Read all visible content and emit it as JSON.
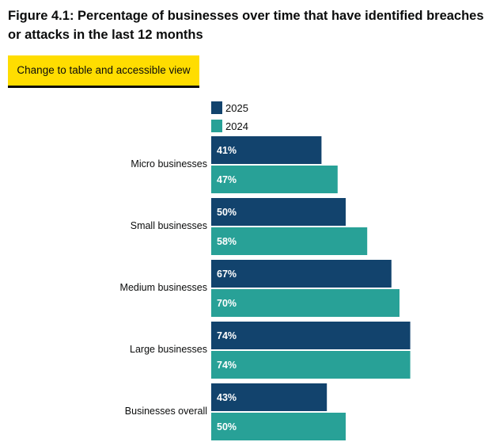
{
  "title": "Figure 4.1: Percentage of businesses over time that have identified breaches or attacks in the last 12 months",
  "toggle_button": "Change to table and accessible view",
  "colors": {
    "series_2025": "#12436d",
    "series_2024": "#28a197",
    "button": "#ffdd00"
  },
  "chart_data": {
    "type": "bar",
    "orientation": "horizontal",
    "categories": [
      "Micro businesses",
      "Small businesses",
      "Medium businesses",
      "Large businesses",
      "Businesses overall"
    ],
    "series": [
      {
        "name": "2025",
        "values": [
          41,
          50,
          67,
          74,
          43
        ],
        "labels": [
          "41%",
          "50%",
          "67%",
          "74%",
          "43%"
        ]
      },
      {
        "name": "2024",
        "values": [
          47,
          58,
          70,
          74,
          50
        ],
        "labels": [
          "47%",
          "58%",
          "70%",
          "74%",
          "50%"
        ]
      }
    ],
    "xlim": [
      0,
      100
    ],
    "grid": false,
    "legend": "top-left"
  }
}
